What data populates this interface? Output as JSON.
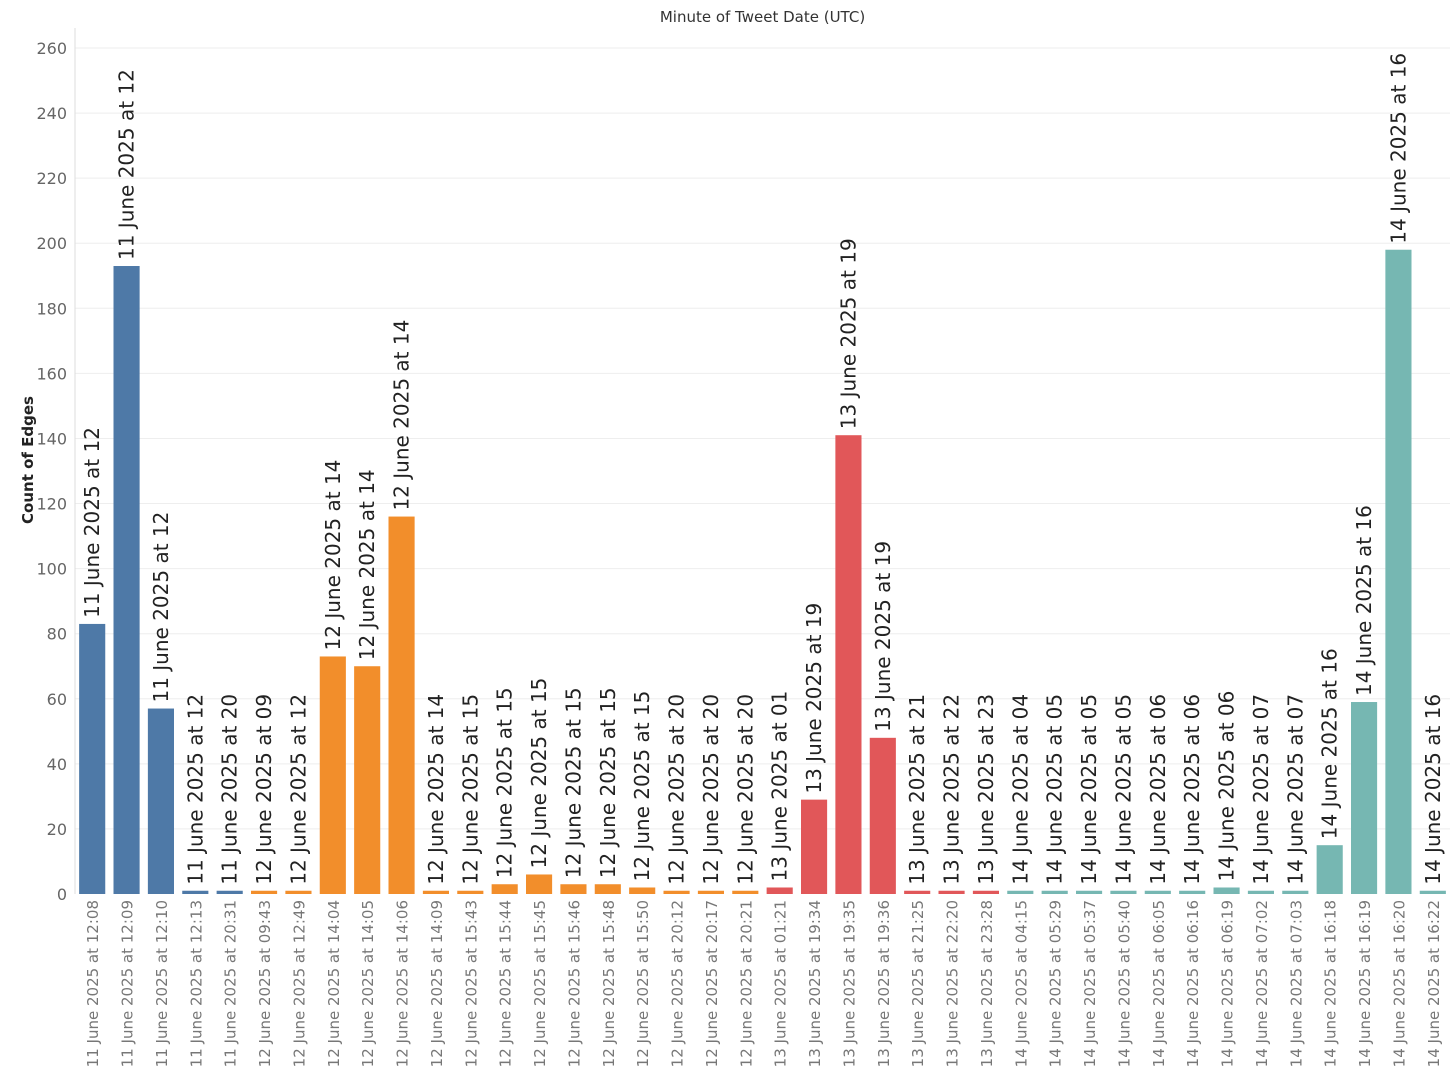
{
  "chart_data": {
    "type": "bar",
    "title": "Minute of Tweet Date (UTC)",
    "xlabel": "",
    "ylabel": "Count of Edges",
    "ylim": [
      0,
      260
    ],
    "yticks": [
      0,
      20,
      40,
      60,
      80,
      100,
      120,
      140,
      160,
      180,
      200,
      220,
      240,
      260
    ],
    "grid": true,
    "colors": {
      "11 June": "#4e79a7",
      "12 June": "#f28e2b",
      "13 June": "#e15759",
      "14 June": "#76b7b2"
    },
    "bars": [
      {
        "category": "11 June 2025 at 12:08",
        "label": "11 June 2025 at 12",
        "value": 83,
        "group": "11 June"
      },
      {
        "category": "11 June 2025 at 12:09",
        "label": "11 June 2025 at 12",
        "value": 193,
        "group": "11 June"
      },
      {
        "category": "11 June 2025 at 12:10",
        "label": "11 June 2025 at 12",
        "value": 57,
        "group": "11 June"
      },
      {
        "category": "11 June 2025 at 12:13",
        "label": "11 June 2025 at 12",
        "value": 1,
        "group": "11 June"
      },
      {
        "category": "11 June 2025 at 20:31",
        "label": "11 June 2025 at 20",
        "value": 1,
        "group": "11 June"
      },
      {
        "category": "12 June 2025 at 09:43",
        "label": "12 June 2025 at 09",
        "value": 1,
        "group": "12 June"
      },
      {
        "category": "12 June 2025 at 12:49",
        "label": "12 June 2025 at 12",
        "value": 1,
        "group": "12 June"
      },
      {
        "category": "12 June 2025 at 14:04",
        "label": "12 June 2025 at 14",
        "value": 73,
        "group": "12 June"
      },
      {
        "category": "12 June 2025 at 14:05",
        "label": "12 June 2025 at 14",
        "value": 70,
        "group": "12 June"
      },
      {
        "category": "12 June 2025 at 14:06",
        "label": "12 June 2025 at 14",
        "value": 116,
        "group": "12 June"
      },
      {
        "category": "12 June 2025 at 14:09",
        "label": "12 June 2025 at 14",
        "value": 1,
        "group": "12 June"
      },
      {
        "category": "12 June 2025 at 15:43",
        "label": "12 June 2025 at 15",
        "value": 1,
        "group": "12 June"
      },
      {
        "category": "12 June 2025 at 15:44",
        "label": "12 June 2025 at 15",
        "value": 3,
        "group": "12 June"
      },
      {
        "category": "12 June 2025 at 15:45",
        "label": "12 June 2025 at 15",
        "value": 6,
        "group": "12 June"
      },
      {
        "category": "12 June 2025 at 15:46",
        "label": "12 June 2025 at 15",
        "value": 3,
        "group": "12 June"
      },
      {
        "category": "12 June 2025 at 15:48",
        "label": "12 June 2025 at 15",
        "value": 3,
        "group": "12 June"
      },
      {
        "category": "12 June 2025 at 15:50",
        "label": "12 June 2025 at 15",
        "value": 2,
        "group": "12 June"
      },
      {
        "category": "12 June 2025 at 20:12",
        "label": "12 June 2025 at 20",
        "value": 1,
        "group": "12 June"
      },
      {
        "category": "12 June 2025 at 20:17",
        "label": "12 June 2025 at 20",
        "value": 1,
        "group": "12 June"
      },
      {
        "category": "12 June 2025 at 20:21",
        "label": "12 June 2025 at 20",
        "value": 1,
        "group": "12 June"
      },
      {
        "category": "13 June 2025 at 01:21",
        "label": "13 June 2025 at 01",
        "value": 2,
        "group": "13 June"
      },
      {
        "category": "13 June 2025 at 19:34",
        "label": "13 June 2025 at 19",
        "value": 29,
        "group": "13 June"
      },
      {
        "category": "13 June 2025 at 19:35",
        "label": "13 June 2025 at 19",
        "value": 141,
        "group": "13 June"
      },
      {
        "category": "13 June 2025 at 19:36",
        "label": "13 June 2025 at 19",
        "value": 48,
        "group": "13 June"
      },
      {
        "category": "13 June 2025 at 21:25",
        "label": "13 June 2025 at 21",
        "value": 1,
        "group": "13 June"
      },
      {
        "category": "13 June 2025 at 22:20",
        "label": "13 June 2025 at 22",
        "value": 1,
        "group": "13 June"
      },
      {
        "category": "13 June 2025 at 23:28",
        "label": "13 June 2025 at 23",
        "value": 1,
        "group": "13 June"
      },
      {
        "category": "14 June 2025 at 04:15",
        "label": "14 June 2025 at 04",
        "value": 1,
        "group": "14 June"
      },
      {
        "category": "14 June 2025 at 05:29",
        "label": "14 June 2025 at 05",
        "value": 1,
        "group": "14 June"
      },
      {
        "category": "14 June 2025 at 05:37",
        "label": "14 June 2025 at 05",
        "value": 1,
        "group": "14 June"
      },
      {
        "category": "14 June 2025 at 05:40",
        "label": "14 June 2025 at 05",
        "value": 1,
        "group": "14 June"
      },
      {
        "category": "14 June 2025 at 06:05",
        "label": "14 June 2025 at 06",
        "value": 1,
        "group": "14 June"
      },
      {
        "category": "14 June 2025 at 06:16",
        "label": "14 June 2025 at 06",
        "value": 1,
        "group": "14 June"
      },
      {
        "category": "14 June 2025 at 06:19",
        "label": "14 June 2025 at 06",
        "value": 2,
        "group": "14 June"
      },
      {
        "category": "14 June 2025 at 07:02",
        "label": "14 June 2025 at 07",
        "value": 1,
        "group": "14 June"
      },
      {
        "category": "14 June 2025 at 07:03",
        "label": "14 June 2025 at 07",
        "value": 1,
        "group": "14 June"
      },
      {
        "category": "14 June 2025 at 16:18",
        "label": "14 June 2025 at 16",
        "value": 15,
        "group": "14 June"
      },
      {
        "category": "14 June 2025 at 16:19",
        "label": "14 June 2025 at 16",
        "value": 59,
        "group": "14 June"
      },
      {
        "category": "14 June 2025 at 16:20",
        "label": "14 June 2025 at 16",
        "value": 198,
        "group": "14 June"
      },
      {
        "category": "14 June 2025 at 16:22",
        "label": "14 June 2025 at 16",
        "value": 1,
        "group": "14 June"
      }
    ]
  }
}
